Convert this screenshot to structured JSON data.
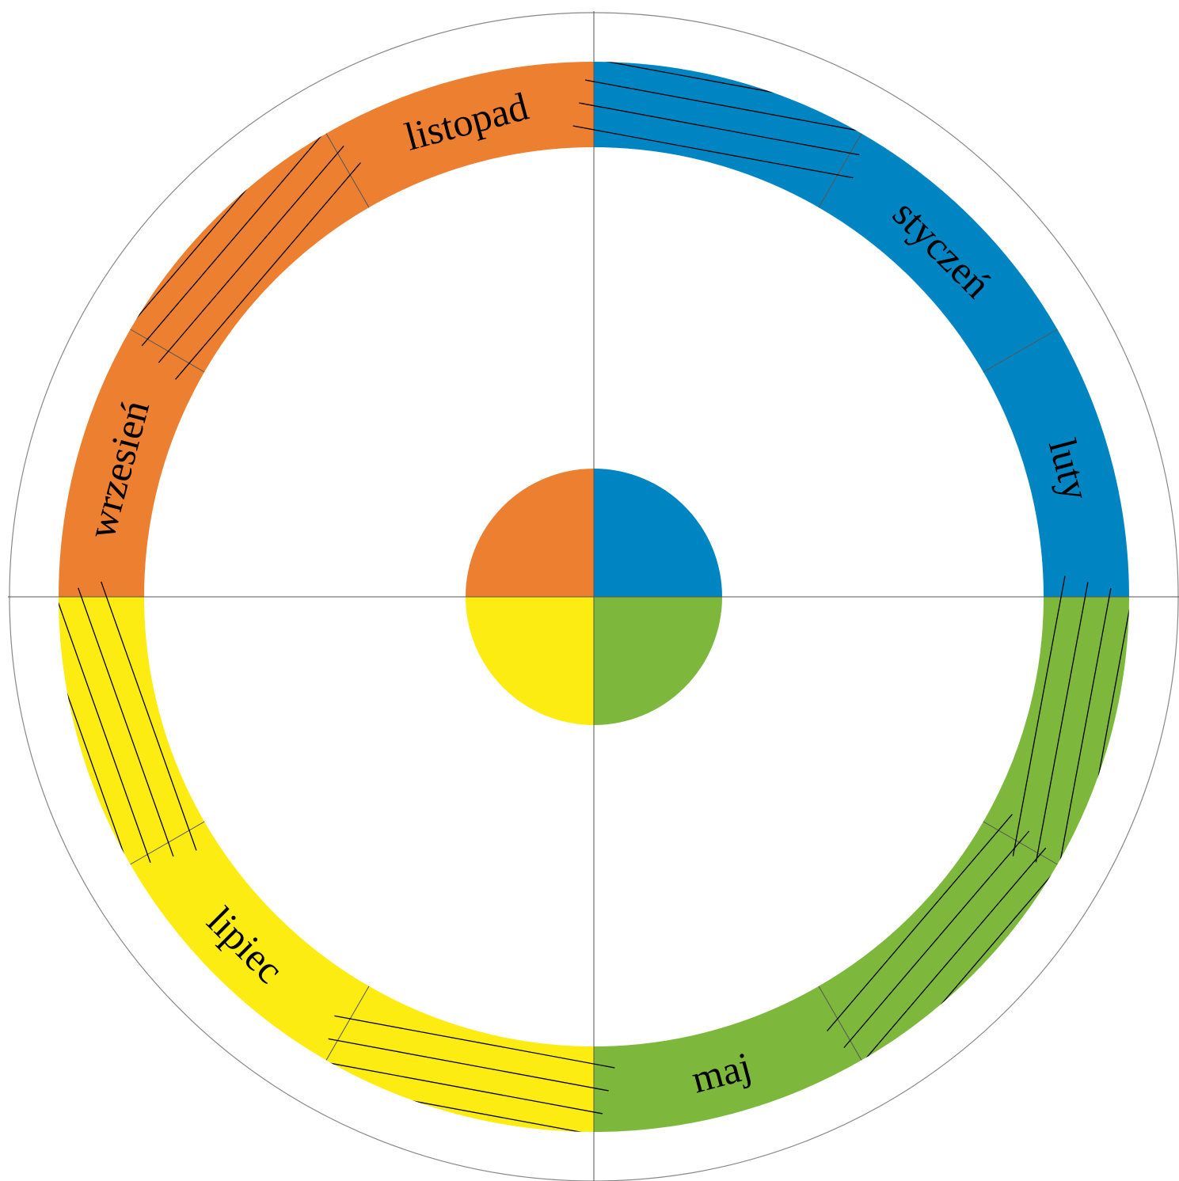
{
  "colors": {
    "winter": "#0085c3",
    "spring": "#7db83c",
    "summer": "#fcec11",
    "autumn": "#ed7f30",
    "lines": "#555555",
    "hatch": "#000000"
  },
  "segments": [
    {
      "id": "dec",
      "label": "",
      "season": "winter",
      "hatched": true
    },
    {
      "id": "jan",
      "label": "styczeń",
      "season": "winter",
      "hatched": false
    },
    {
      "id": "feb",
      "label": "luty",
      "season": "winter",
      "hatched": false
    },
    {
      "id": "mar",
      "label": "",
      "season": "spring",
      "hatched": true
    },
    {
      "id": "apr",
      "label": "",
      "season": "spring",
      "hatched": true
    },
    {
      "id": "may",
      "label": "maj",
      "season": "spring",
      "hatched": false
    },
    {
      "id": "jun",
      "label": "",
      "season": "summer",
      "hatched": true
    },
    {
      "id": "jul",
      "label": "lipiec",
      "season": "summer",
      "hatched": false
    },
    {
      "id": "aug",
      "label": "",
      "season": "summer",
      "hatched": true
    },
    {
      "id": "sep",
      "label": "wrzesień",
      "season": "autumn",
      "hatched": false
    },
    {
      "id": "oct",
      "label": "",
      "season": "autumn",
      "hatched": true
    },
    {
      "id": "nov",
      "label": "listopad",
      "season": "autumn",
      "hatched": false
    }
  ],
  "center_quadrants": [
    "winter",
    "spring",
    "summer",
    "autumn"
  ]
}
